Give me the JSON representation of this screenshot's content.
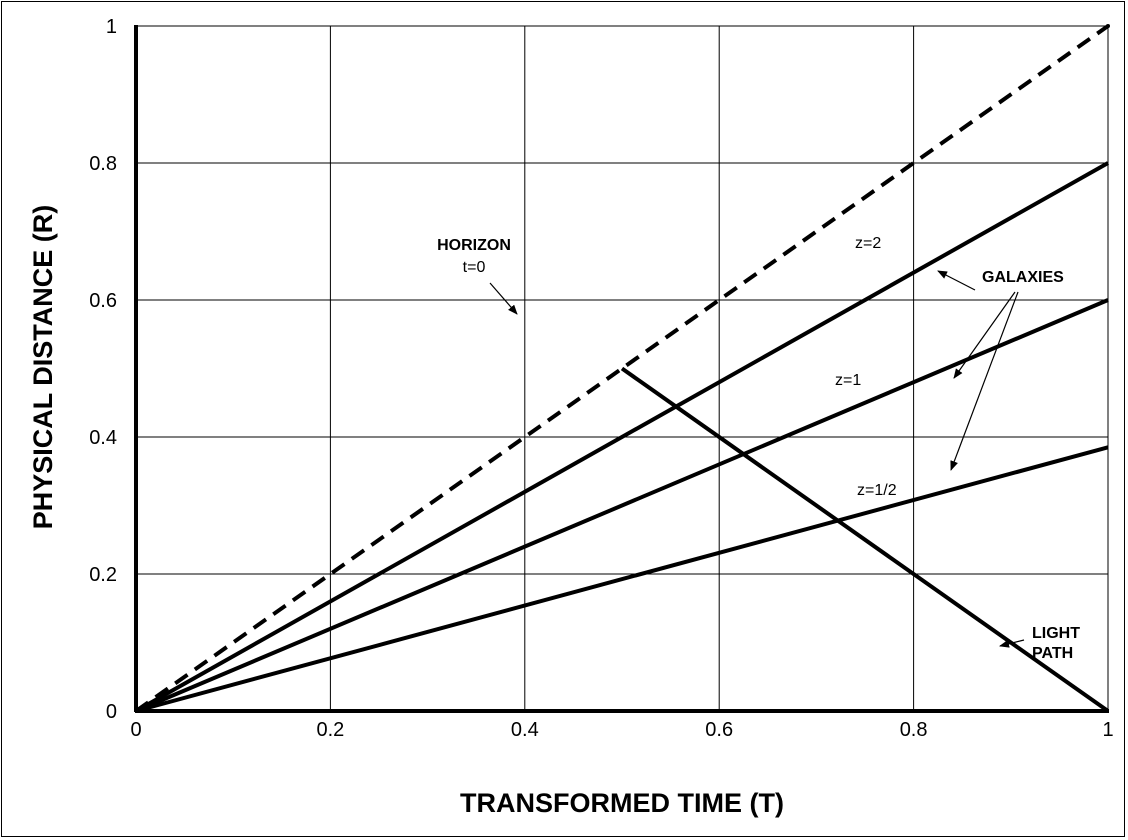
{
  "chart_data": {
    "type": "line",
    "xlabel": "TRANSFORMED TIME (T)",
    "ylabel": "PHYSICAL DISTANCE (R)",
    "xlim": [
      0,
      1
    ],
    "ylim": [
      0,
      1
    ],
    "x_ticks": [
      "0",
      "0.2",
      "0.4",
      "0.6",
      "0.8",
      "1"
    ],
    "y_ticks": [
      "0",
      "0.2",
      "0.4",
      "0.6",
      "0.8",
      "1"
    ],
    "grid": true,
    "series": [
      {
        "name": "",
        "style": "dashed",
        "points": [
          [
            0,
            0
          ],
          [
            1,
            1
          ]
        ]
      },
      {
        "name": "z=2",
        "style": "solid",
        "points": [
          [
            0,
            0
          ],
          [
            1,
            0.8
          ]
        ]
      },
      {
        "name": "z=1",
        "style": "solid",
        "points": [
          [
            0,
            0
          ],
          [
            1,
            0.6
          ]
        ]
      },
      {
        "name": "z=1/2",
        "style": "solid",
        "points": [
          [
            0,
            0
          ],
          [
            1,
            0.385
          ]
        ]
      },
      {
        "name": "",
        "style": "solid",
        "points": [
          [
            0.5,
            0.5
          ],
          [
            1,
            0
          ]
        ]
      }
    ],
    "annotations": {
      "horizon": {
        "title": "HORIZON",
        "subtitle": "t=0"
      },
      "galaxies": "GALAXIES",
      "light_path": [
        "LIGHT",
        "PATH"
      ],
      "z2": "z=2",
      "z1": "z=1",
      "zhalf": "z=1/2"
    }
  }
}
